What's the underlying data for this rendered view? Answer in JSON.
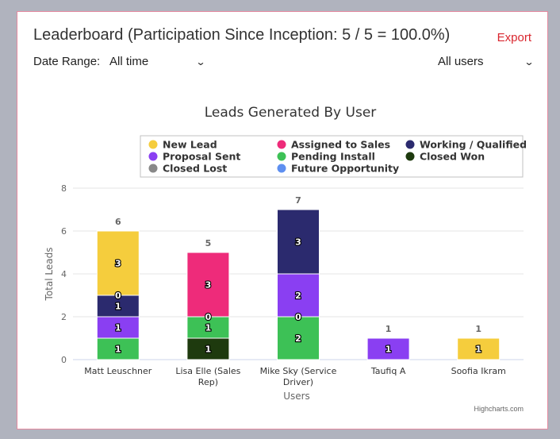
{
  "header": {
    "title": "Leaderboard (Participation Since Inception: 5 / 5 = 100.0%)",
    "export_label": "Export"
  },
  "filters": {
    "date_range_label": "Date Range:",
    "date_range_value": "All time",
    "users_value": "All users"
  },
  "icons": {
    "dropdown": "chevron-down-icon"
  },
  "credits": "Highcharts.com",
  "chart_data": {
    "type": "bar",
    "stacked": true,
    "title": "Leads Generated By User",
    "xlabel": "Users",
    "ylabel": "Total Leads",
    "ylim": [
      0,
      8
    ],
    "yticks": [
      0,
      2,
      4,
      6,
      8
    ],
    "legend_position": "top",
    "categories": [
      [
        "Matt Leuschner"
      ],
      [
        "Lisa Elle (Sales",
        "Rep)"
      ],
      [
        "Mike Sky (Service",
        "Driver)"
      ],
      [
        "Taufiq A"
      ],
      [
        "Soofia Ikram"
      ]
    ],
    "totals": [
      6,
      5,
      7,
      1,
      1
    ],
    "series": [
      {
        "name": "New Lead",
        "color": "#f5cd3d",
        "values": [
          3,
          0,
          0,
          0,
          1
        ]
      },
      {
        "name": "Assigned to Sales",
        "color": "#ee2b7a",
        "values": [
          0,
          3,
          0,
          0,
          0
        ]
      },
      {
        "name": "Working / Qualified",
        "color": "#2b2a6e",
        "values": [
          1,
          0,
          3,
          0,
          0
        ]
      },
      {
        "name": "Proposal Sent",
        "color": "#8a3ff2",
        "values": [
          1,
          0,
          2,
          1,
          0
        ]
      },
      {
        "name": "Pending Install",
        "color": "#3dc156",
        "values": [
          1,
          1,
          2,
          0,
          0
        ]
      },
      {
        "name": "Closed Won",
        "color": "#1e3a0e",
        "values": [
          0,
          1,
          0,
          0,
          0
        ]
      },
      {
        "name": "Closed Lost",
        "color": "#888888",
        "values": [
          0,
          0,
          0,
          0,
          0
        ]
      },
      {
        "name": "Future Opportunity",
        "color": "#5e8ff0",
        "values": [
          0,
          0,
          0,
          0,
          0
        ]
      }
    ],
    "zero_labels": [
      {
        "category": 0,
        "series": "Working / Qualified",
        "text": "0"
      },
      {
        "category": 1,
        "series": "Pending Install",
        "text": "0"
      },
      {
        "category": 2,
        "series": "Pending Install",
        "text": "0"
      }
    ]
  }
}
